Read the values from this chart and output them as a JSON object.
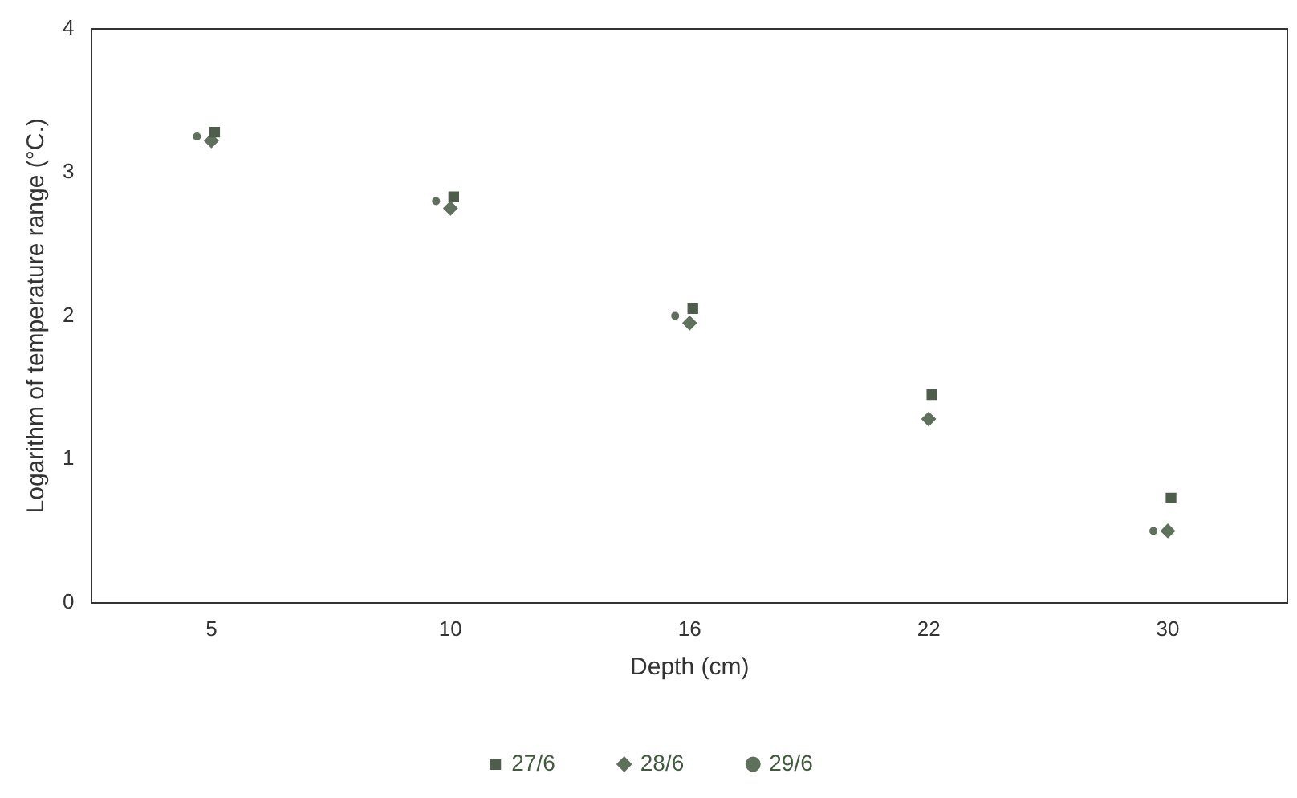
{
  "chart_data": {
    "type": "scatter",
    "xlabel": "Depth (cm)",
    "ylabel": "Logarithm of temperature range (°C.)",
    "categories": [
      "5",
      "10",
      "16",
      "22",
      "30"
    ],
    "ylim": [
      0,
      4
    ],
    "yticks": [
      0,
      1,
      2,
      3,
      4
    ],
    "grid": false,
    "legend": "bottom",
    "series": [
      {
        "name": "27/6",
        "color": "#4f5e4c",
        "marker": "square",
        "values": [
          3.28,
          2.83,
          2.05,
          1.45,
          0.73
        ]
      },
      {
        "name": "28/6",
        "color": "#5f705c",
        "marker": "diamond",
        "values": [
          3.22,
          2.75,
          1.95,
          1.28,
          0.5
        ]
      },
      {
        "name": "29/6",
        "color": "#5f705c",
        "marker": "circle",
        "values": [
          3.25,
          2.8,
          2.0,
          null,
          0.5
        ]
      }
    ]
  }
}
